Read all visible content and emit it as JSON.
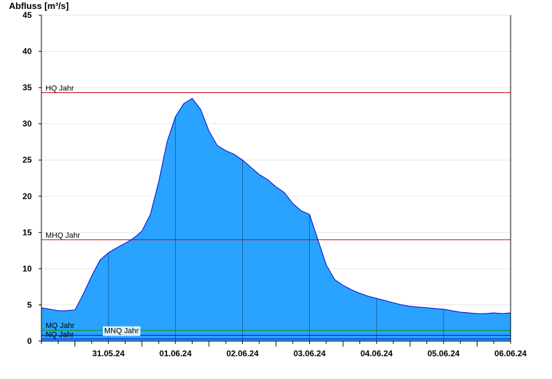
{
  "chart_data": {
    "type": "area",
    "ylabel": "Abfluss [m³/s]",
    "ylim": [
      0,
      45
    ],
    "yticks": [
      0,
      5,
      10,
      15,
      20,
      25,
      30,
      35,
      40,
      45
    ],
    "xlim": [
      "30.05.24 12:00",
      "06.06.24 12:00"
    ],
    "xtick_labels": [
      "31.05.24",
      "01.06.24",
      "02.06.24",
      "03.06.24",
      "04.06.24",
      "05.06.24",
      "06.06.24"
    ],
    "grid": true,
    "colors": {
      "fill": "#29a3ff",
      "line": "#0000cc",
      "hq_line": "#cc0000",
      "mq_line": "#009900",
      "nq_line": "#0000cc"
    },
    "reference_lines": [
      {
        "label": "HQ Jahr",
        "value": 34.3
      },
      {
        "label": "MHQ Jahr",
        "value": 14.0
      },
      {
        "label": "MQ Jahr",
        "value": 1.5
      },
      {
        "label": "MNQ Jahr",
        "value": 0.8
      },
      {
        "label": "NQ Jahr",
        "value": 0.3
      }
    ],
    "series": [
      {
        "x": [
          "30.05.24 12:00",
          "30.05.24 15:00",
          "30.05.24 18:00",
          "30.05.24 21:00",
          "31.05.24 00:00",
          "31.05.24 03:00",
          "31.05.24 06:00",
          "31.05.24 09:00",
          "31.05.24 12:00",
          "31.05.24 15:00",
          "31.05.24 18:00",
          "31.05.24 21:00",
          "01.06.24 00:00",
          "01.06.24 03:00",
          "01.06.24 06:00",
          "01.06.24 09:00",
          "01.06.24 12:00",
          "01.06.24 15:00",
          "01.06.24 18:00",
          "01.06.24 21:00",
          "02.06.24 00:00",
          "02.06.24 03:00",
          "02.06.24 06:00",
          "02.06.24 09:00",
          "02.06.24 12:00",
          "02.06.24 15:00",
          "02.06.24 18:00",
          "02.06.24 21:00",
          "03.06.24 00:00",
          "03.06.24 03:00",
          "03.06.24 06:00",
          "03.06.24 09:00",
          "03.06.24 12:00",
          "03.06.24 15:00",
          "03.06.24 18:00",
          "03.06.24 21:00",
          "04.06.24 00:00",
          "04.06.24 03:00",
          "04.06.24 06:00",
          "04.06.24 09:00",
          "04.06.24 12:00",
          "04.06.24 15:00",
          "04.06.24 18:00",
          "04.06.24 21:00",
          "05.06.24 00:00",
          "05.06.24 03:00",
          "05.06.24 06:00",
          "05.06.24 09:00",
          "05.06.24 12:00",
          "05.06.24 15:00",
          "05.06.24 18:00",
          "05.06.24 21:00",
          "06.06.24 00:00",
          "06.06.24 03:00",
          "06.06.24 06:00",
          "06.06.24 09:00",
          "06.06.24 12:00"
        ],
        "y": [
          4.6,
          4.4,
          4.2,
          4.2,
          4.3,
          6.5,
          9.0,
          11.2,
          12.2,
          12.9,
          13.5,
          14.2,
          15.2,
          17.5,
          22.0,
          27.5,
          31.0,
          32.8,
          33.5,
          32.0,
          29.0,
          27.0,
          26.3,
          25.8,
          25.0,
          24.0,
          23.0,
          22.3,
          21.3,
          20.5,
          19.0,
          18.0,
          17.5,
          14.0,
          10.5,
          8.5,
          7.7,
          7.1,
          6.6,
          6.2,
          5.9,
          5.6,
          5.3,
          5.0,
          4.8,
          4.7,
          4.6,
          4.5,
          4.4,
          4.2,
          4.0,
          3.9,
          3.8,
          3.8,
          3.9,
          3.8,
          3.9
        ]
      }
    ]
  }
}
